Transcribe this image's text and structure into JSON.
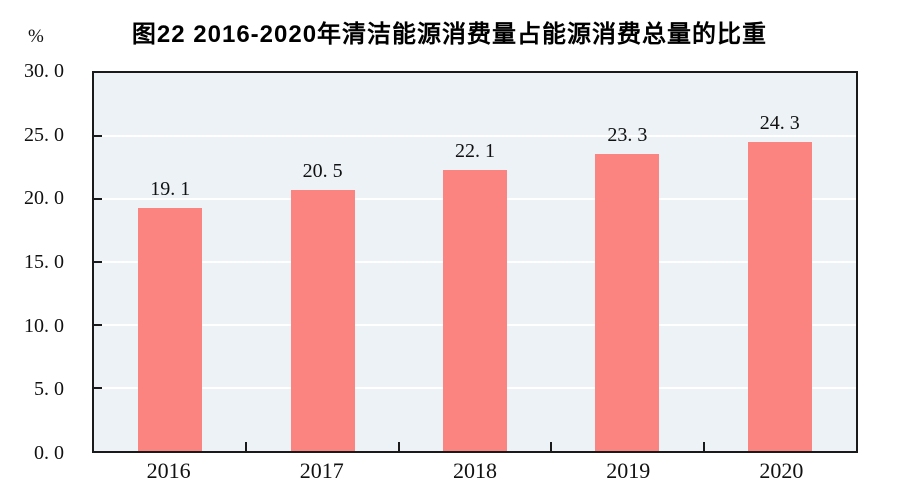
{
  "chart_data": {
    "type": "bar",
    "title": "图22  2016-2020年清洁能源消费量占能源消费总量的比重",
    "unit_label": "%",
    "categories": [
      "2016",
      "2017",
      "2018",
      "2019",
      "2020"
    ],
    "values": [
      19.1,
      20.5,
      22.1,
      23.3,
      24.3
    ],
    "value_labels": [
      "19. 1",
      "20. 5",
      "22. 1",
      "23. 3",
      "24. 3"
    ],
    "ylabel": "%",
    "xlabel": "",
    "ylim": [
      0,
      30
    ],
    "y_tick_step": 5,
    "y_tick_labels": [
      "0. 0",
      "5. 0",
      "10. 0",
      "15. 0",
      "20. 0",
      "25. 0",
      "30. 0"
    ],
    "grid": "horizontal gridlines every 5 units, white on pale blue panel",
    "legend": "none",
    "colors": {
      "bar_fill": "#FB8480",
      "plot_background": "#ECF2F6",
      "gridline": "#FFFFFF",
      "frame": "#1A1A1A",
      "title_text": "#000000",
      "tick_text": "#111111"
    }
  }
}
